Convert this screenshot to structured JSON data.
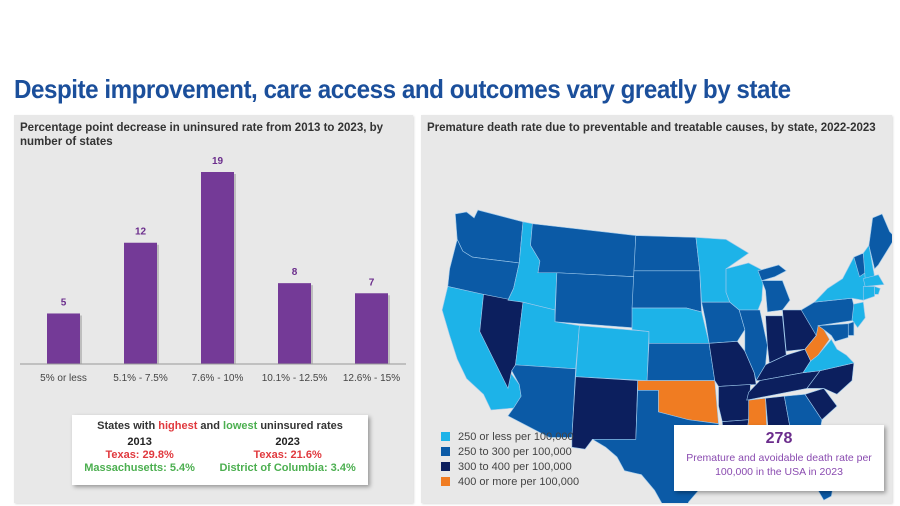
{
  "page": {
    "title": "Despite improvement, care access and outcomes vary greatly by state"
  },
  "left_panel": {
    "title": "Percentage point decrease in uninsured rate from 2013 to 2023, by number of states",
    "callout": {
      "title_prefix": "States with ",
      "title_highest": "highest",
      "title_mid": " and ",
      "title_lowest": "lowest",
      "title_suffix": " uninsured rates",
      "columns": [
        {
          "year": "2013",
          "highest": "Texas: 29.8%",
          "lowest": "Massachusetts: 5.4%"
        },
        {
          "year": "2023",
          "highest": "Texas: 21.6%",
          "lowest": "District of Columbia: 3.4%"
        }
      ]
    }
  },
  "right_panel": {
    "title": "Premature death rate due to preventable and treatable causes, by state, 2022-2023",
    "legend": [
      {
        "label": "250 or less per 100,000",
        "color": "#1db3e8"
      },
      {
        "label": "250 to 300 per 100,000",
        "color": "#0b5aa6"
      },
      {
        "label": "300 to 400 per 100,000",
        "color": "#0c1f5e"
      },
      {
        "label": "400 or more per 100,000",
        "color": "#f07c22"
      }
    ],
    "callout": {
      "value": "278",
      "description": "Premature and avoidable death rate per 100,000 in the USA in 2023"
    }
  },
  "colors": {
    "title": "#1b4f9b",
    "bar": "#743a97",
    "bar_label": "#6b2d8c",
    "highest": "#e0393e",
    "lowest": "#4caf50"
  },
  "chart_data": [
    {
      "type": "bar",
      "title": "Percentage point decrease in uninsured rate from 2013 to 2023, by number of states",
      "xlabel": "",
      "ylabel": "",
      "categories": [
        "5% or less",
        "5.1% - 7.5%",
        "7.6% - 10%",
        "10.1% - 12.5%",
        "12.6% - 15%"
      ],
      "values": [
        5,
        12,
        19,
        8,
        7
      ],
      "ylim": [
        0,
        19
      ],
      "grid": false,
      "data_labels": true
    },
    {
      "type": "heatmap",
      "title": "Premature death rate due to preventable and treatable causes, by state, 2022-2023",
      "categories": [
        "250 or less per 100,000",
        "250 to 300 per 100,000",
        "300 to 400 per 100,000",
        "400 or more per 100,000"
      ],
      "states": {
        "WA": 1,
        "OR": 1,
        "CA": 0,
        "NV": 2,
        "ID": 0,
        "MT": 1,
        "WY": 1,
        "UT": 0,
        "CO": 0,
        "AZ": 1,
        "NM": 2,
        "ND": 1,
        "SD": 1,
        "NE": 0,
        "KS": 1,
        "OK": 3,
        "TX": 1,
        "MN": 0,
        "IA": 1,
        "MO": 2,
        "AR": 2,
        "LA": 2,
        "WI": 0,
        "IL": 1,
        "MI": 1,
        "IN": 2,
        "OH": 2,
        "KY": 2,
        "TN": 2,
        "MS": 3,
        "AL": 2,
        "GA": 1,
        "FL": 1,
        "SC": 2,
        "NC": 2,
        "VA": 0,
        "WV": 3,
        "PA": 1,
        "NY": 0,
        "VT": 1,
        "NH": 0,
        "ME": 1,
        "MA": 0,
        "CT": 0,
        "RI": 0,
        "NJ": 0,
        "DE": 1,
        "MD": 1
      },
      "legend": "bottom-left"
    }
  ]
}
